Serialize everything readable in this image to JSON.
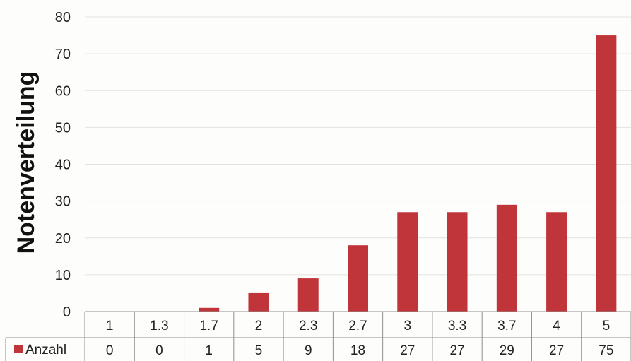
{
  "chart_data": {
    "type": "bar",
    "ylabel": "Notenverteilung",
    "ylim": [
      0,
      80
    ],
    "yticks": [
      0,
      10,
      20,
      30,
      40,
      50,
      60,
      70,
      80
    ],
    "grid": true,
    "categories": [
      "1",
      "1.3",
      "1.7",
      "2",
      "2.3",
      "2.7",
      "3",
      "3.3",
      "3.7",
      "4",
      "5"
    ],
    "series": [
      {
        "name": "Anzahl",
        "color": "#c0353a",
        "values": [
          0,
          0,
          1,
          5,
          9,
          18,
          27,
          27,
          29,
          27,
          75
        ]
      }
    ],
    "data_table": true
  }
}
